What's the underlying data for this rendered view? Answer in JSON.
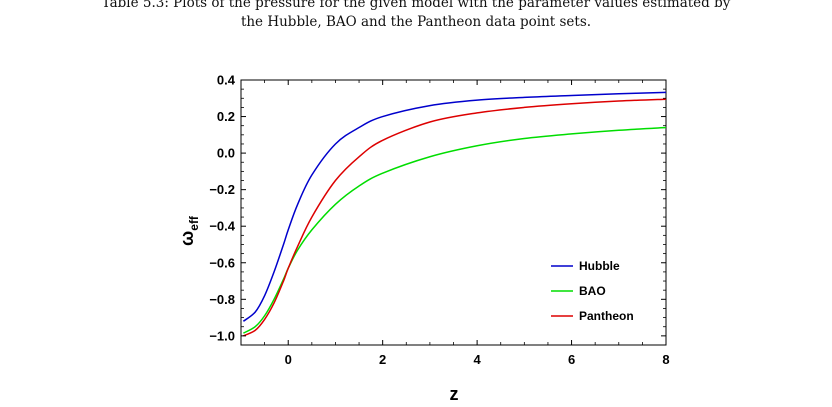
{
  "caption": {
    "line1": "Table 5.3: Plots of the pressure for the given model with the parameter values estimated by",
    "line2": "the Hubble, BAO and the Pantheon data point sets."
  },
  "chart_data": {
    "type": "line",
    "xlabel": "z",
    "ylabel": {
      "main": "ω",
      "sub": "eff"
    },
    "xlim": [
      -1,
      8
    ],
    "ylim": [
      -1.05,
      0.4
    ],
    "xticks": [
      0,
      2,
      4,
      6,
      8
    ],
    "xtick_labels": [
      "0",
      "2",
      "4",
      "6",
      "8"
    ],
    "yticks": [
      -1.0,
      -0.8,
      -0.6,
      -0.4,
      -0.2,
      0.0,
      0.2,
      0.4
    ],
    "ytick_labels": [
      "-1.0",
      "-0.8",
      "-0.6",
      "-0.4",
      "-0.2",
      "0.0",
      "0.2",
      "0.4"
    ],
    "grid": false,
    "legend_position": "lower-right",
    "series": [
      {
        "name": "Hubble",
        "color": "#0000cc",
        "x": [
          -0.95,
          -0.7,
          -0.5,
          -0.3,
          -0.1,
          0.0,
          0.2,
          0.5,
          1.0,
          1.5,
          2.0,
          3.0,
          4.0,
          5.0,
          6.0,
          7.0,
          8.0
        ],
        "y": [
          -0.92,
          -0.87,
          -0.78,
          -0.65,
          -0.5,
          -0.42,
          -0.28,
          -0.12,
          0.05,
          0.14,
          0.2,
          0.26,
          0.29,
          0.305,
          0.315,
          0.325,
          0.332
        ]
      },
      {
        "name": "BAO",
        "color": "#00dd00",
        "x": [
          -0.95,
          -0.7,
          -0.5,
          -0.3,
          -0.1,
          0.0,
          0.2,
          0.5,
          1.0,
          1.5,
          2.0,
          3.0,
          4.0,
          5.0,
          6.0,
          7.0,
          8.0
        ],
        "y": [
          -0.985,
          -0.95,
          -0.89,
          -0.8,
          -0.69,
          -0.63,
          -0.53,
          -0.42,
          -0.28,
          -0.18,
          -0.11,
          -0.02,
          0.04,
          0.08,
          0.105,
          0.125,
          0.14
        ]
      },
      {
        "name": "Pantheon",
        "color": "#dd0000",
        "x": [
          -0.95,
          -0.7,
          -0.5,
          -0.3,
          -0.1,
          0.0,
          0.2,
          0.5,
          1.0,
          1.5,
          2.0,
          3.0,
          4.0,
          5.0,
          6.0,
          7.0,
          8.0
        ],
        "y": [
          -1.0,
          -0.97,
          -0.91,
          -0.82,
          -0.7,
          -0.63,
          -0.51,
          -0.35,
          -0.15,
          -0.02,
          0.07,
          0.17,
          0.22,
          0.25,
          0.27,
          0.285,
          0.295
        ]
      }
    ]
  }
}
